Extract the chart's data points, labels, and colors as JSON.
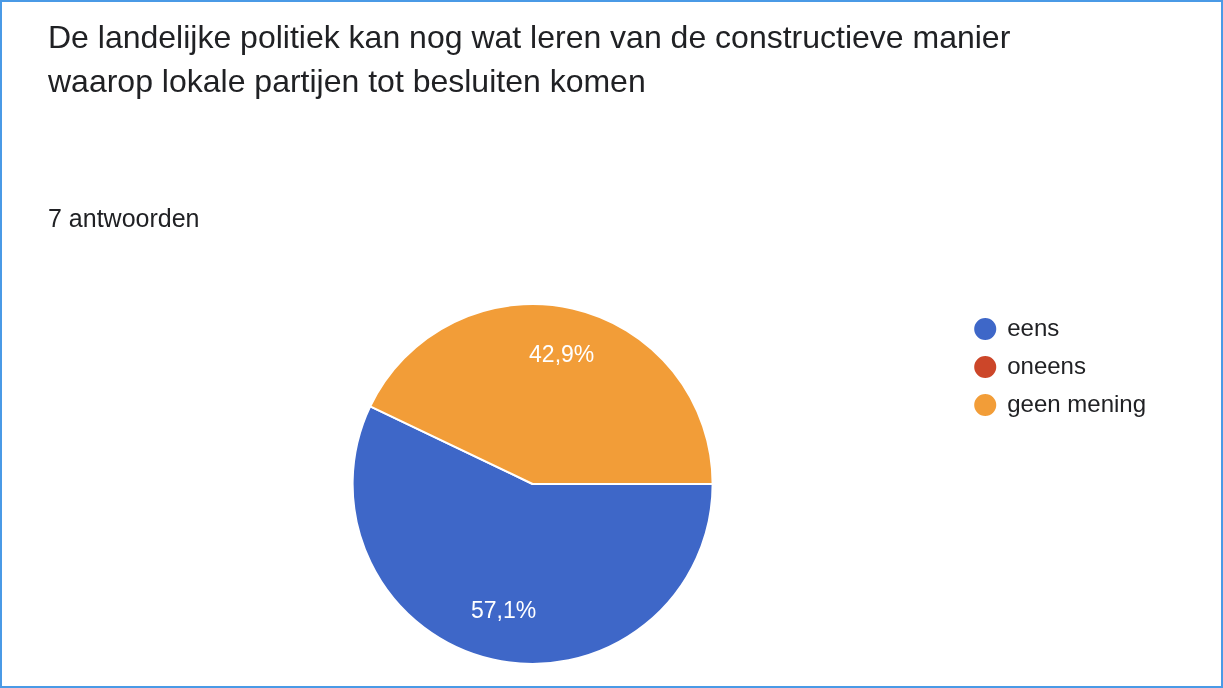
{
  "chart_data": {
    "type": "pie",
    "title": "De landelijke politiek kan nog wat leren van de constructieve manier waarop lokale partijen tot besluiten komen",
    "subtitle": "7 antwoorden",
    "categories": [
      "eens",
      "oneens",
      "geen mening"
    ],
    "values": [
      57.1,
      0,
      42.9
    ],
    "colors": [
      "#3e67c8",
      "#cc4629",
      "#f29d38"
    ],
    "value_labels": [
      "57,1%",
      null,
      "42,9%"
    ],
    "legend": "right"
  }
}
